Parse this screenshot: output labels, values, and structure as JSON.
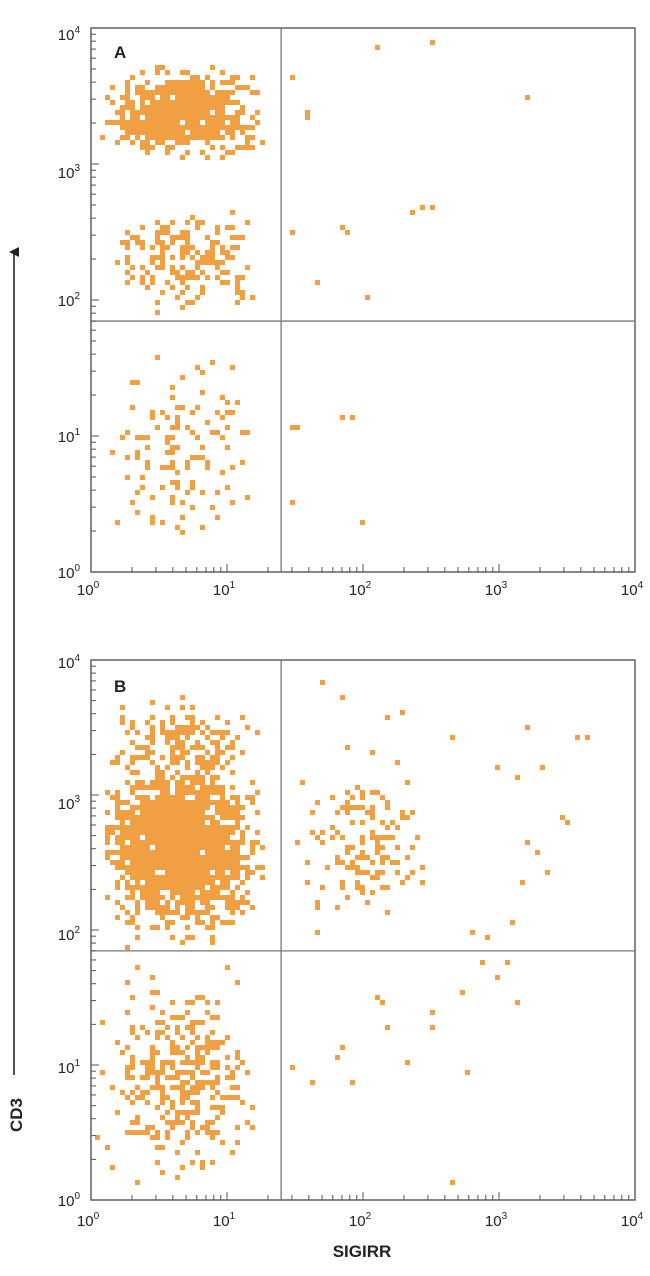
{
  "chart_data": [
    {
      "type": "scatter",
      "panel_label": "A",
      "x_scale": "log",
      "y_scale": "log",
      "xlim": [
        1,
        10000
      ],
      "ylim": [
        1,
        10000
      ],
      "x_ticks": [
        {
          "base": "10",
          "exp": "0"
        },
        {
          "base": "10",
          "exp": "1"
        },
        {
          "base": "10",
          "exp": "2"
        },
        {
          "base": "10",
          "exp": "3"
        },
        {
          "base": "10",
          "exp": "4"
        }
      ],
      "y_ticks": [
        {
          "base": "10",
          "exp": "0"
        },
        {
          "base": "10",
          "exp": "1"
        },
        {
          "base": "10",
          "exp": "2"
        },
        {
          "base": "10",
          "exp": "3"
        },
        {
          "base": "10",
          "exp": "4"
        }
      ],
      "quadrant_gates": {
        "x": 25,
        "y": 70
      },
      "grid": false,
      "point_color": "#f0a042",
      "clusters": [
        {
          "x_range": [
            1,
            20
          ],
          "y_range": [
            1000,
            6000
          ],
          "count": 700
        },
        {
          "x_range": [
            1,
            20
          ],
          "y_range": [
            70,
            600
          ],
          "count": 170
        },
        {
          "x_range": [
            1,
            20
          ],
          "y_range": [
            1,
            70
          ],
          "count": 120
        }
      ],
      "points": [
        [
          30,
          4500
        ],
        [
          38,
          2600
        ],
        [
          38,
          2200
        ],
        [
          120,
          7200
        ],
        [
          300,
          8500
        ],
        [
          1500,
          3300
        ],
        [
          30,
          340
        ],
        [
          70,
          360
        ],
        [
          75,
          320
        ],
        [
          230,
          450
        ],
        [
          260,
          500
        ],
        [
          300,
          480
        ],
        [
          45,
          140
        ],
        [
          100,
          110
        ],
        [
          30,
          12
        ],
        [
          31,
          12
        ],
        [
          70,
          14
        ],
        [
          80,
          14
        ],
        [
          30,
          3.5
        ],
        [
          95,
          2.5
        ]
      ]
    },
    {
      "type": "scatter",
      "panel_label": "B",
      "x_scale": "log",
      "y_scale": "log",
      "xlim": [
        1,
        10000
      ],
      "ylim": [
        1,
        10000
      ],
      "x_ticks": [
        {
          "base": "10",
          "exp": "0"
        },
        {
          "base": "10",
          "exp": "1"
        },
        {
          "base": "10",
          "exp": "2"
        },
        {
          "base": "10",
          "exp": "3"
        },
        {
          "base": "10",
          "exp": "4"
        }
      ],
      "y_ticks": [
        {
          "base": "10",
          "exp": "0"
        },
        {
          "base": "10",
          "exp": "1"
        },
        {
          "base": "10",
          "exp": "2"
        },
        {
          "base": "10",
          "exp": "3"
        },
        {
          "base": "10",
          "exp": "4"
        }
      ],
      "quadrant_gates": {
        "x": 25,
        "y": 70
      },
      "grid": false,
      "point_color": "#f0a042",
      "clusters": [
        {
          "x_range": [
            1,
            20
          ],
          "y_range": [
            70,
            2500
          ],
          "count": 1700
        },
        {
          "x_range": [
            1,
            20
          ],
          "y_range": [
            1000,
            6000
          ],
          "count": 160
        },
        {
          "x_range": [
            1,
            20
          ],
          "y_range": [
            1,
            70
          ],
          "count": 350
        },
        {
          "x_range": [
            25,
            400
          ],
          "y_range": [
            80,
            3000
          ],
          "count": 130
        }
      ],
      "points": [
        [
          50,
          7000
        ],
        [
          65,
          5500
        ],
        [
          150,
          3800
        ],
        [
          190,
          4200
        ],
        [
          420,
          2800
        ],
        [
          1600,
          3300
        ],
        [
          3500,
          2800
        ],
        [
          4200,
          2800
        ],
        [
          900,
          1700
        ],
        [
          1300,
          1400
        ],
        [
          2000,
          1600
        ],
        [
          2800,
          700
        ],
        [
          3100,
          650
        ],
        [
          1600,
          450
        ],
        [
          1800,
          380
        ],
        [
          2100,
          280
        ],
        [
          1400,
          230
        ],
        [
          1200,
          120
        ],
        [
          600,
          100
        ],
        [
          800,
          95
        ],
        [
          700,
          60
        ],
        [
          900,
          45
        ],
        [
          1300,
          30
        ],
        [
          1100,
          60
        ],
        [
          500,
          35
        ],
        [
          300,
          25
        ],
        [
          120,
          32
        ],
        [
          130,
          30
        ],
        [
          150,
          19
        ],
        [
          200,
          11
        ],
        [
          300,
          20
        ],
        [
          550,
          9
        ],
        [
          60,
          12
        ],
        [
          70,
          14
        ],
        [
          80,
          8
        ],
        [
          40,
          8
        ],
        [
          30,
          10
        ],
        [
          450,
          1.4
        ]
      ]
    }
  ],
  "axes": {
    "y_title": "CD3",
    "x_title": "SIGIRR"
  }
}
